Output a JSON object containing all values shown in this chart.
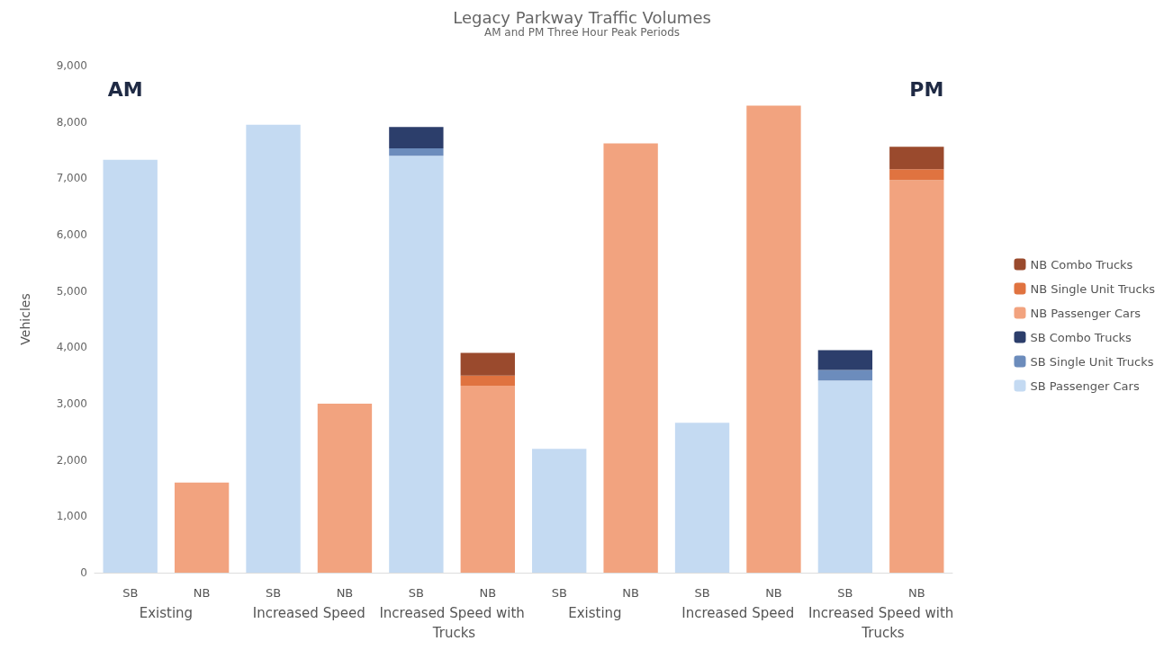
{
  "chart_data": {
    "type": "bar",
    "title": "Legacy Parkway Traffic Volumes",
    "subtitle": "AM and PM Three Hour Peak Periods",
    "ylabel": "Vehicles",
    "categories": [
      "SB",
      "NB",
      "SB",
      "NB",
      "SB",
      "NB",
      "SB",
      "NB",
      "SB",
      "NB",
      "SB",
      "NB"
    ],
    "stacked": true,
    "series": [
      {
        "name": "SB Passenger Cars",
        "color": "#c4daf2",
        "values": [
          7330,
          null,
          7950,
          null,
          7400,
          null,
          2200,
          null,
          2660,
          null,
          3410,
          null
        ]
      },
      {
        "name": "SB Single Unit Trucks",
        "color": "#6c8cbc",
        "values": [
          null,
          null,
          null,
          null,
          130,
          null,
          null,
          null,
          null,
          null,
          190,
          null
        ]
      },
      {
        "name": "SB Combo Trucks",
        "color": "#2c3e6b",
        "values": [
          null,
          null,
          null,
          null,
          380,
          null,
          null,
          null,
          null,
          null,
          350,
          null
        ]
      },
      {
        "name": "NB Passenger Cars",
        "color": "#f2a37f",
        "values": [
          null,
          1600,
          null,
          3000,
          null,
          3320,
          null,
          7620,
          null,
          8290,
          null,
          6970
        ]
      },
      {
        "name": "NB Single Unit Trucks",
        "color": "#e07340",
        "values": [
          null,
          null,
          null,
          null,
          null,
          180,
          null,
          null,
          null,
          null,
          null,
          190
        ]
      },
      {
        "name": "NB Combo Trucks",
        "color": "#9a4a2d",
        "values": [
          null,
          null,
          null,
          null,
          null,
          400,
          null,
          null,
          null,
          null,
          null,
          400
        ]
      }
    ],
    "ylim": [
      0,
      9000
    ],
    "yticks": [
      0,
      {
        "value": 1000,
        "label": "1,000"
      },
      {
        "value": 2000,
        "label": "2,000"
      },
      {
        "value": 3000,
        "label": "3,000"
      },
      {
        "value": 4000,
        "label": "4,000"
      },
      {
        "value": 5000,
        "label": "5,000"
      },
      {
        "value": 6000,
        "label": "6,000"
      },
      {
        "value": 7000,
        "label": "7,000"
      },
      {
        "value": 8000,
        "label": "8,000"
      },
      {
        "value": 9000,
        "label": "9,000"
      }
    ],
    "grid": false,
    "legend": "right",
    "annotations": [
      "AM",
      "PM",
      "Existing",
      "Increased Speed",
      "Increased Speed with Trucks",
      "Existing",
      "Increased Speed",
      "Increased Speed with Trucks"
    ]
  }
}
